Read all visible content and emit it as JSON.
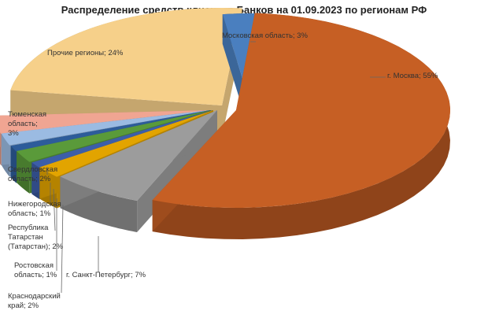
{
  "chart_data": {
    "type": "pie",
    "title": "Распределение средств клиентов Банков на 01.09.2023  по регионам РФ",
    "slices": [
      {
        "key": "moscow_oblast",
        "label": [
          "Московская область; 3%"
        ],
        "value": 3,
        "color": "#4a7fbf"
      },
      {
        "key": "moscow",
        "label": [
          "г. Москва; 55%"
        ],
        "value": 55,
        "color": "#c65f24"
      },
      {
        "key": "spb",
        "label": [
          "г. Санкт-Петербург; 7%"
        ],
        "value": 7,
        "color": "#9c9c9c"
      },
      {
        "key": "krasnodar",
        "label": [
          "Краснодарский",
          "край; 2%"
        ],
        "value": 2,
        "color": "#e2a400"
      },
      {
        "key": "rostov",
        "label": [
          "Ростовская",
          "область; 1%"
        ],
        "value": 1,
        "color": "#3c5ea8"
      },
      {
        "key": "tatarstan",
        "label": [
          "Республика",
          "Татарстан",
          "(Татарстан); 2%"
        ],
        "value": 2,
        "color": "#5a9a3a"
      },
      {
        "key": "nizhny",
        "label": [
          "Нижегородская",
          "область; 1%"
        ],
        "value": 1,
        "color": "#2d5c9a"
      },
      {
        "key": "sverdlovsk",
        "label": [
          "Свердловская",
          "область; 2%"
        ],
        "value": 2,
        "color": "#9bbbe2"
      },
      {
        "key": "tyumen",
        "label": [
          "Тюменская",
          "область;",
          "3%"
        ],
        "value": 3,
        "color": "#f0a592"
      },
      {
        "key": "other",
        "label": [
          "Прочие регионы; 24%"
        ],
        "value": 24,
        "color": "#f6d08a"
      }
    ],
    "extra_gray_slice_color": "#bfbfbf",
    "legend": "none"
  }
}
